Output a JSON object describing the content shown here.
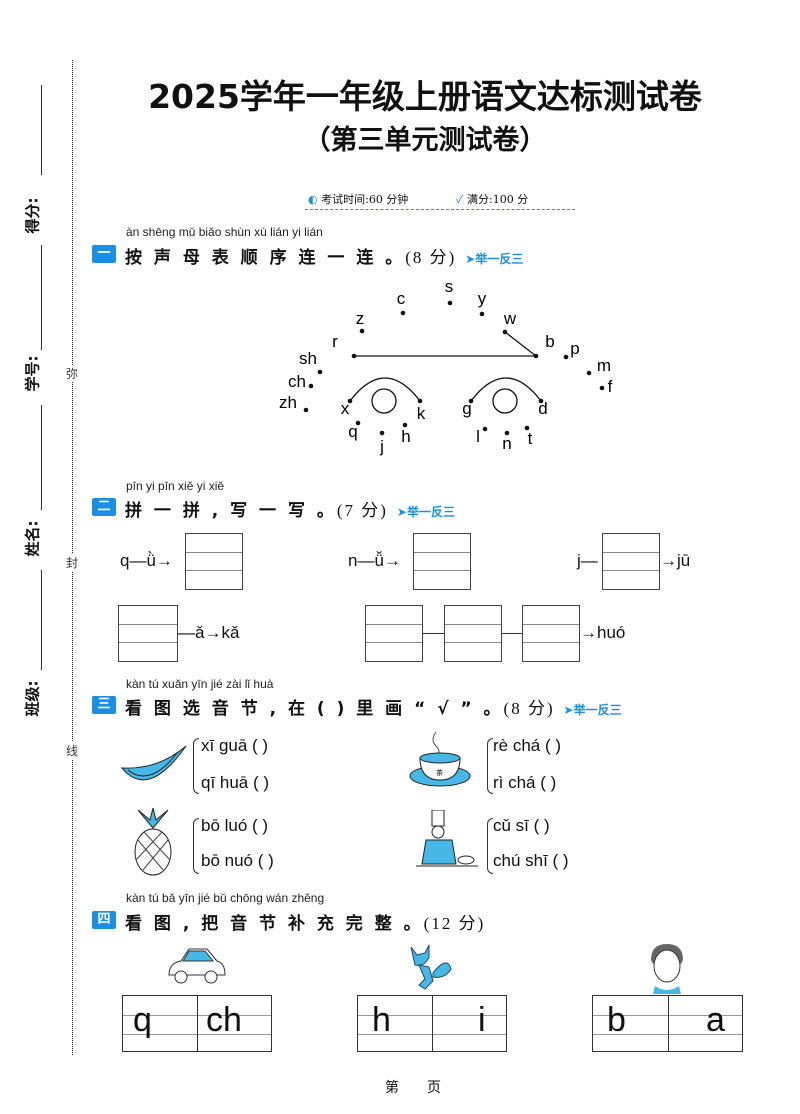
{
  "side": {
    "score_label": "得分:",
    "id_label": "学号:",
    "name_label": "姓名:",
    "class_label": "班级:",
    "cut_marks": [
      "弥",
      "封",
      "线"
    ]
  },
  "header": {
    "title": "2025学年一年级上册语文达标测试卷",
    "subtitle": "（第三单元测试卷）",
    "time": "考试时间:60 分钟",
    "full_score": "满分:100 分"
  },
  "accent": "#1a8fe3",
  "sections": [
    {
      "num": "一",
      "pinyin": "àn shēng mǔ biǎo shùn xù lián yi lián",
      "title": "按 声 母 表 顺 序 连 一 连 。",
      "score": "(8 分)",
      "tag": "➤举一反三",
      "letters": [
        "s",
        "c",
        "y",
        "z",
        "w",
        "r",
        "b",
        "p",
        "sh",
        "m",
        "ch",
        "f",
        "zh",
        "x",
        "k",
        "g",
        "d",
        "q",
        "j",
        "h",
        "l",
        "n",
        "t"
      ]
    },
    {
      "num": "二",
      "pinyin": "pīn yi pīn   xiě yi xiě",
      "title": "拼 一 拼 , 写 一 写 。",
      "score": "(7 分)",
      "tag": "➤举一反三",
      "items": [
        "q—ǜ→",
        "n—ǚ→",
        "j—",
        "→jū",
        "—ǎ→kǎ",
        "→huó"
      ]
    },
    {
      "num": "三",
      "pinyin": "kàn tú xuǎn yīn jié     zài                    lǐ  huà",
      "title": "看 图 选 音 节 , 在 (      ) 里 画 “ √ ” 。",
      "score": "(8 分)",
      "tag": "➤举一反三",
      "options": [
        "xī guā (      )",
        "qī huā (      )",
        "rè chá (      )",
        "rì chá (      )",
        "bō luó (      )",
        "bō nuó (      )",
        "cǔ sī (      )",
        "chú shī (      )"
      ]
    },
    {
      "num": "四",
      "pinyin": "kàn tú    bǎ yīn jié bǔ chōng wán zhěng",
      "title": "看 图 , 把 音 节 补 充  完  整  。",
      "score": "(12 分)",
      "cells": [
        "q",
        "ch",
        "h",
        "i",
        "b",
        "a"
      ]
    }
  ],
  "footer": {
    "page": "第　　页"
  }
}
